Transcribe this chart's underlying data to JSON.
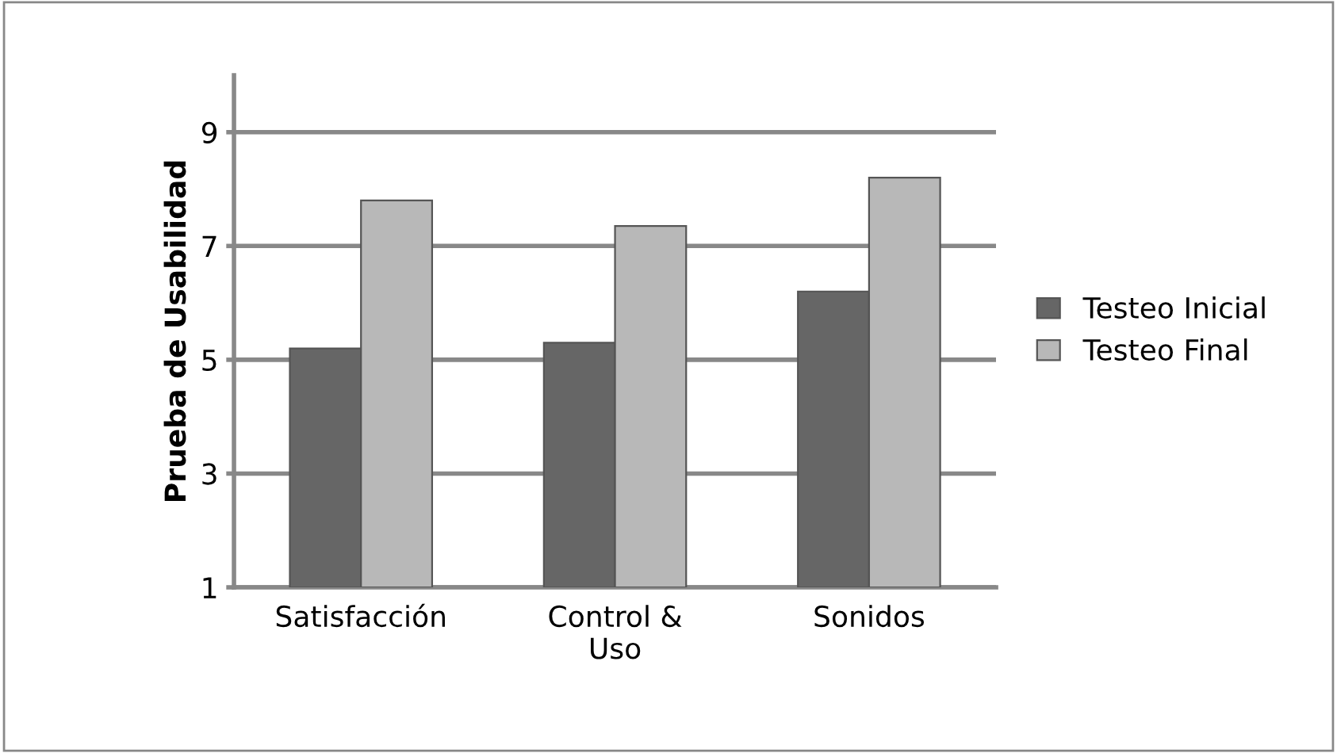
{
  "chart_data": {
    "type": "bar",
    "ylabel": "Prueba de Usabilidad",
    "categories": [
      "Satisfacción",
      "Control &\nUso",
      "Sonidos"
    ],
    "series": [
      {
        "name": "Testeo Inicial",
        "color": "#666666",
        "values": [
          5.2,
          5.3,
          6.2
        ]
      },
      {
        "name": "Testeo Final",
        "color": "#b8b8b8",
        "values": [
          7.8,
          7.35,
          8.2
        ]
      }
    ],
    "ylim": [
      1,
      10
    ],
    "yticks": [
      1,
      3,
      5,
      7,
      9
    ],
    "grid": "y",
    "legend": "right"
  }
}
